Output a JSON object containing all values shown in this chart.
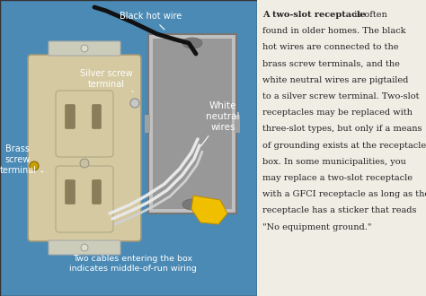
{
  "bg_color": "#4a8ab5",
  "outlet_color": "#d4c9a0",
  "outlet_dark": "#8a7e5a",
  "box_color": "#b0b0b0",
  "white_bg": "#f0ede5",
  "text_color": "#222222",
  "label_color": "#ffffff",
  "title_bold": "A two-slot receptacle",
  "body_lines": [
    " is often",
    "found in older homes. The black",
    "hot wires are connected to the",
    "brass screw terminals, and the",
    "white neutral wires are pigtailed",
    "to a silver screw terminal. Two-slot",
    "receptacles may be replaced with",
    "three-slot types, but only if a means",
    "of grounding exists at the receptacle",
    "box. In some municipalities, you",
    "may replace a two-slot receptacle",
    "with a GFCI receptacle as long as the",
    "receptacle has a sticker that reads",
    "\"No equipment ground.\""
  ],
  "font_size_body": 7.0,
  "font_size_label": 7.0
}
